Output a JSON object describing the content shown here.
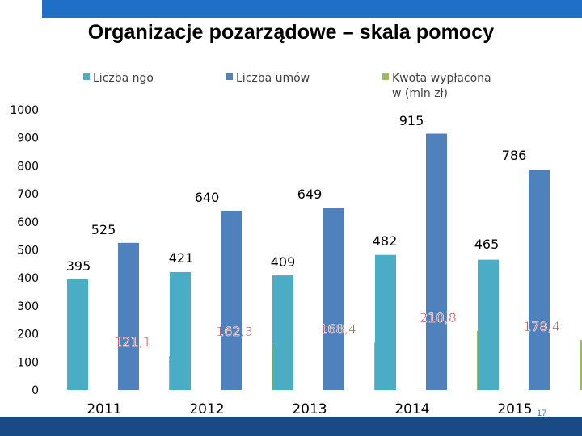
{
  "slide": {
    "title": "Organizacje pozarządowe – skala pomocy",
    "page_number": "17"
  },
  "legend": [
    {
      "label": "Liczba ngo",
      "color": "#4bacc6"
    },
    {
      "label": "Liczba umów",
      "color": "#4f81bd"
    },
    {
      "label": "Kwota wypłacona w (mln zł)",
      "color": "#9bbb59"
    }
  ],
  "chart_data": {
    "type": "bar",
    "title": "Organizacje pozarządowe – skala pomocy",
    "categories": [
      "2011",
      "2012",
      "2013",
      "2014",
      "2015"
    ],
    "series": [
      {
        "name": "Liczba ngo",
        "values": [
          395,
          421,
          409,
          482,
          465
        ],
        "labels": [
          "395",
          "421",
          "409",
          "482",
          "465"
        ],
        "color": "#4bacc6",
        "label_color": "#000000"
      },
      {
        "name": "Liczba umów",
        "values": [
          525,
          640,
          649,
          915,
          786
        ],
        "labels": [
          "525",
          "640",
          "649",
          "915",
          "786"
        ],
        "color": "#4f81bd",
        "label_color": "#000000"
      },
      {
        "name": "Kwota wypłacona w (mln zł)",
        "values": [
          121.1,
          162.3,
          168.4,
          210.8,
          178.4
        ],
        "labels": [
          "121,1",
          "162,3",
          "168,4",
          "210,8",
          "178,4"
        ],
        "color": "#9bbb59",
        "label_color": "#c0504d"
      }
    ],
    "y_ticks": [
      0,
      100,
      200,
      300,
      400,
      500,
      600,
      700,
      800,
      900,
      1000
    ],
    "ylim": [
      0,
      1000
    ],
    "xlabel": "",
    "ylabel": "",
    "grid": false,
    "legend_position": "top"
  }
}
